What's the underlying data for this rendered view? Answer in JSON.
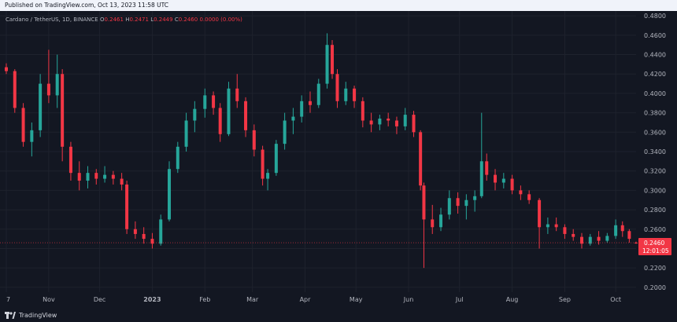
{
  "published": "Published on TradingView.com, Oct 13, 2023 11:58 UTC",
  "legend": {
    "symbol": "Cardano / TetherUS, 1D, BINANCE",
    "o_label": "O",
    "o": "0.2461",
    "h_label": "H",
    "h": "0.2471",
    "l_label": "L",
    "l": "0.2449",
    "c_label": "C",
    "c": "0.2460",
    "change": "0.0000 (0.00%)"
  },
  "current_price": {
    "value": "0.2460",
    "countdown": "12:01:05"
  },
  "footer": {
    "brand": "TradingView"
  },
  "colors": {
    "background": "#131722",
    "up": "#26a69a",
    "down": "#f23645",
    "grid": "#1e222d",
    "text": "#b2b5be",
    "price_line": "#f23645"
  },
  "chart_data": {
    "type": "candlestick",
    "title": "Cardano / TetherUS, 1D, BINANCE",
    "y_ticks": [
      "0.4800",
      "0.4600",
      "0.4400",
      "0.4200",
      "0.4000",
      "0.3800",
      "0.3600",
      "0.3400",
      "0.3200",
      "0.3000",
      "0.2800",
      "0.2600",
      "0.2400",
      "0.2200",
      "0.2000"
    ],
    "ylim": [
      0.195,
      0.485
    ],
    "x_ticks": [
      "7",
      "Nov",
      "Dec",
      "2023",
      "Feb",
      "Mar",
      "Apr",
      "May",
      "Jun",
      "Jul",
      "Aug",
      "Sep",
      "Oct"
    ],
    "grid": true,
    "series": [
      {
        "date": "2022-10-07",
        "o": 0.427,
        "h": 0.431,
        "l": 0.42,
        "c": 0.423
      },
      {
        "date": "2022-10-12",
        "o": 0.423,
        "h": 0.425,
        "l": 0.38,
        "c": 0.385
      },
      {
        "date": "2022-10-17",
        "o": 0.385,
        "h": 0.39,
        "l": 0.345,
        "c": 0.35
      },
      {
        "date": "2022-10-22",
        "o": 0.35,
        "h": 0.37,
        "l": 0.335,
        "c": 0.362
      },
      {
        "date": "2022-10-27",
        "o": 0.362,
        "h": 0.42,
        "l": 0.355,
        "c": 0.41
      },
      {
        "date": "2022-11-01",
        "o": 0.41,
        "h": 0.445,
        "l": 0.39,
        "c": 0.398
      },
      {
        "date": "2022-11-06",
        "o": 0.398,
        "h": 0.44,
        "l": 0.385,
        "c": 0.42
      },
      {
        "date": "2022-11-09",
        "o": 0.42,
        "h": 0.425,
        "l": 0.33,
        "c": 0.345
      },
      {
        "date": "2022-11-14",
        "o": 0.345,
        "h": 0.35,
        "l": 0.31,
        "c": 0.318
      },
      {
        "date": "2022-11-19",
        "o": 0.318,
        "h": 0.33,
        "l": 0.3,
        "c": 0.31
      },
      {
        "date": "2022-11-24",
        "o": 0.31,
        "h": 0.325,
        "l": 0.302,
        "c": 0.318
      },
      {
        "date": "2022-11-29",
        "o": 0.318,
        "h": 0.322,
        "l": 0.306,
        "c": 0.312
      },
      {
        "date": "2022-12-04",
        "o": 0.312,
        "h": 0.325,
        "l": 0.308,
        "c": 0.316
      },
      {
        "date": "2022-12-09",
        "o": 0.316,
        "h": 0.32,
        "l": 0.306,
        "c": 0.312
      },
      {
        "date": "2022-12-14",
        "o": 0.312,
        "h": 0.318,
        "l": 0.3,
        "c": 0.306
      },
      {
        "date": "2022-12-17",
        "o": 0.306,
        "h": 0.31,
        "l": 0.255,
        "c": 0.26
      },
      {
        "date": "2022-12-22",
        "o": 0.26,
        "h": 0.268,
        "l": 0.25,
        "c": 0.255
      },
      {
        "date": "2022-12-27",
        "o": 0.255,
        "h": 0.262,
        "l": 0.245,
        "c": 0.25
      },
      {
        "date": "2023-01-01",
        "o": 0.25,
        "h": 0.256,
        "l": 0.24,
        "c": 0.245
      },
      {
        "date": "2023-01-06",
        "o": 0.245,
        "h": 0.275,
        "l": 0.243,
        "c": 0.27
      },
      {
        "date": "2023-01-11",
        "o": 0.27,
        "h": 0.33,
        "l": 0.268,
        "c": 0.322
      },
      {
        "date": "2023-01-16",
        "o": 0.322,
        "h": 0.35,
        "l": 0.318,
        "c": 0.345
      },
      {
        "date": "2023-01-21",
        "o": 0.345,
        "h": 0.38,
        "l": 0.34,
        "c": 0.372
      },
      {
        "date": "2023-01-26",
        "o": 0.372,
        "h": 0.392,
        "l": 0.36,
        "c": 0.384
      },
      {
        "date": "2023-02-01",
        "o": 0.384,
        "h": 0.405,
        "l": 0.375,
        "c": 0.398
      },
      {
        "date": "2023-02-06",
        "o": 0.398,
        "h": 0.402,
        "l": 0.378,
        "c": 0.385
      },
      {
        "date": "2023-02-10",
        "o": 0.385,
        "h": 0.39,
        "l": 0.35,
        "c": 0.358
      },
      {
        "date": "2023-02-15",
        "o": 0.358,
        "h": 0.412,
        "l": 0.356,
        "c": 0.405
      },
      {
        "date": "2023-02-20",
        "o": 0.405,
        "h": 0.42,
        "l": 0.385,
        "c": 0.392
      },
      {
        "date": "2023-02-25",
        "o": 0.392,
        "h": 0.396,
        "l": 0.355,
        "c": 0.362
      },
      {
        "date": "2023-03-02",
        "o": 0.362,
        "h": 0.368,
        "l": 0.335,
        "c": 0.342
      },
      {
        "date": "2023-03-07",
        "o": 0.342,
        "h": 0.346,
        "l": 0.305,
        "c": 0.312
      },
      {
        "date": "2023-03-10",
        "o": 0.312,
        "h": 0.322,
        "l": 0.3,
        "c": 0.318
      },
      {
        "date": "2023-03-15",
        "o": 0.318,
        "h": 0.352,
        "l": 0.315,
        "c": 0.348
      },
      {
        "date": "2023-03-20",
        "o": 0.348,
        "h": 0.38,
        "l": 0.342,
        "c": 0.372
      },
      {
        "date": "2023-03-25",
        "o": 0.372,
        "h": 0.385,
        "l": 0.358,
        "c": 0.376
      },
      {
        "date": "2023-03-30",
        "o": 0.376,
        "h": 0.398,
        "l": 0.37,
        "c": 0.392
      },
      {
        "date": "2023-04-04",
        "o": 0.392,
        "h": 0.402,
        "l": 0.38,
        "c": 0.388
      },
      {
        "date": "2023-04-09",
        "o": 0.388,
        "h": 0.415,
        "l": 0.385,
        "c": 0.41
      },
      {
        "date": "2023-04-14",
        "o": 0.41,
        "h": 0.462,
        "l": 0.405,
        "c": 0.45
      },
      {
        "date": "2023-04-17",
        "o": 0.45,
        "h": 0.455,
        "l": 0.415,
        "c": 0.42
      },
      {
        "date": "2023-04-20",
        "o": 0.42,
        "h": 0.425,
        "l": 0.385,
        "c": 0.392
      },
      {
        "date": "2023-04-25",
        "o": 0.392,
        "h": 0.412,
        "l": 0.388,
        "c": 0.405
      },
      {
        "date": "2023-04-30",
        "o": 0.405,
        "h": 0.408,
        "l": 0.385,
        "c": 0.392
      },
      {
        "date": "2023-05-05",
        "o": 0.392,
        "h": 0.396,
        "l": 0.365,
        "c": 0.372
      },
      {
        "date": "2023-05-10",
        "o": 0.372,
        "h": 0.38,
        "l": 0.36,
        "c": 0.368
      },
      {
        "date": "2023-05-15",
        "o": 0.368,
        "h": 0.378,
        "l": 0.362,
        "c": 0.374
      },
      {
        "date": "2023-05-20",
        "o": 0.374,
        "h": 0.38,
        "l": 0.366,
        "c": 0.372
      },
      {
        "date": "2023-05-25",
        "o": 0.372,
        "h": 0.376,
        "l": 0.358,
        "c": 0.366
      },
      {
        "date": "2023-05-30",
        "o": 0.366,
        "h": 0.385,
        "l": 0.362,
        "c": 0.378
      },
      {
        "date": "2023-06-04",
        "o": 0.378,
        "h": 0.382,
        "l": 0.355,
        "c": 0.36
      },
      {
        "date": "2023-06-08",
        "o": 0.36,
        "h": 0.362,
        "l": 0.3,
        "c": 0.305
      },
      {
        "date": "2023-06-10",
        "o": 0.305,
        "h": 0.308,
        "l": 0.22,
        "c": 0.27
      },
      {
        "date": "2023-06-15",
        "o": 0.27,
        "h": 0.285,
        "l": 0.255,
        "c": 0.262
      },
      {
        "date": "2023-06-20",
        "o": 0.262,
        "h": 0.282,
        "l": 0.258,
        "c": 0.275
      },
      {
        "date": "2023-06-25",
        "o": 0.275,
        "h": 0.3,
        "l": 0.27,
        "c": 0.292
      },
      {
        "date": "2023-06-30",
        "o": 0.292,
        "h": 0.298,
        "l": 0.276,
        "c": 0.284
      },
      {
        "date": "2023-07-05",
        "o": 0.284,
        "h": 0.296,
        "l": 0.27,
        "c": 0.29
      },
      {
        "date": "2023-07-10",
        "o": 0.29,
        "h": 0.3,
        "l": 0.278,
        "c": 0.294
      },
      {
        "date": "2023-07-14",
        "o": 0.294,
        "h": 0.38,
        "l": 0.292,
        "c": 0.33
      },
      {
        "date": "2023-07-17",
        "o": 0.33,
        "h": 0.338,
        "l": 0.31,
        "c": 0.316
      },
      {
        "date": "2023-07-22",
        "o": 0.316,
        "h": 0.322,
        "l": 0.3,
        "c": 0.308
      },
      {
        "date": "2023-07-27",
        "o": 0.308,
        "h": 0.318,
        "l": 0.302,
        "c": 0.312
      },
      {
        "date": "2023-08-01",
        "o": 0.312,
        "h": 0.316,
        "l": 0.296,
        "c": 0.3
      },
      {
        "date": "2023-08-06",
        "o": 0.3,
        "h": 0.305,
        "l": 0.29,
        "c": 0.296
      },
      {
        "date": "2023-08-11",
        "o": 0.296,
        "h": 0.3,
        "l": 0.286,
        "c": 0.29
      },
      {
        "date": "2023-08-17",
        "o": 0.29,
        "h": 0.292,
        "l": 0.24,
        "c": 0.262
      },
      {
        "date": "2023-08-22",
        "o": 0.262,
        "h": 0.272,
        "l": 0.255,
        "c": 0.265
      },
      {
        "date": "2023-08-27",
        "o": 0.265,
        "h": 0.272,
        "l": 0.258,
        "c": 0.262
      },
      {
        "date": "2023-09-01",
        "o": 0.262,
        "h": 0.265,
        "l": 0.25,
        "c": 0.255
      },
      {
        "date": "2023-09-06",
        "o": 0.255,
        "h": 0.26,
        "l": 0.248,
        "c": 0.252
      },
      {
        "date": "2023-09-11",
        "o": 0.252,
        "h": 0.256,
        "l": 0.24,
        "c": 0.245
      },
      {
        "date": "2023-09-16",
        "o": 0.245,
        "h": 0.255,
        "l": 0.243,
        "c": 0.252
      },
      {
        "date": "2023-09-21",
        "o": 0.252,
        "h": 0.258,
        "l": 0.244,
        "c": 0.248
      },
      {
        "date": "2023-09-26",
        "o": 0.248,
        "h": 0.256,
        "l": 0.246,
        "c": 0.253
      },
      {
        "date": "2023-10-01",
        "o": 0.253,
        "h": 0.27,
        "l": 0.25,
        "c": 0.264
      },
      {
        "date": "2023-10-05",
        "o": 0.264,
        "h": 0.268,
        "l": 0.252,
        "c": 0.258
      },
      {
        "date": "2023-10-09",
        "o": 0.258,
        "h": 0.26,
        "l": 0.246,
        "c": 0.25
      },
      {
        "date": "2023-10-13",
        "o": 0.2461,
        "h": 0.2471,
        "l": 0.2449,
        "c": 0.246
      }
    ]
  }
}
